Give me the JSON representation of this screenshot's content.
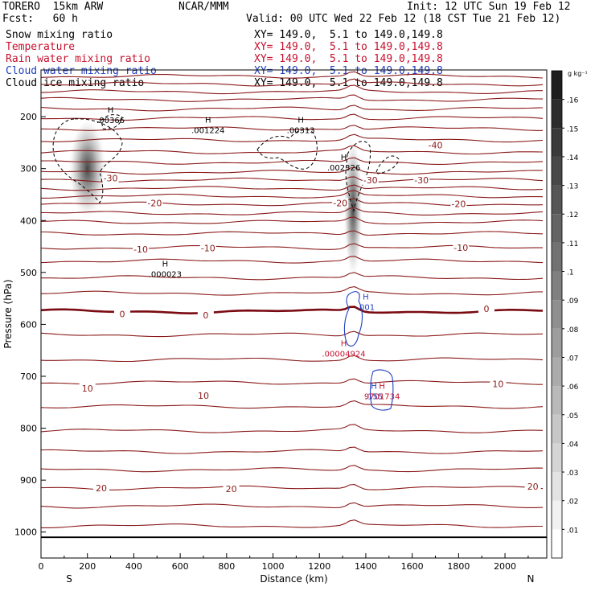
{
  "header": {
    "model": "TORERO  15km ARW",
    "org": "NCAR/MMM",
    "init": "Init: 12 UTC Sun 19 Feb 12",
    "fcst": "Fcst:   60 h",
    "valid": "Valid: 00 UTC Wed 22 Feb 12 (18 CST Tue 21 Feb 12)",
    "fields": [
      {
        "label": "Snow mixing ratio",
        "xy": "XY= 149.0,  5.1 to 149.0,149.8",
        "color": "#000000"
      },
      {
        "label": "Temperature",
        "xy": "XY= 149.0,  5.1 to 149.0,149.8",
        "color": "#c8102e"
      },
      {
        "label": "Rain water mixing ratio",
        "xy": "XY= 149.0,  5.1 to 149.0,149.8",
        "color": "#c8102e"
      },
      {
        "label": "Cloud water mixing ratio",
        "xy": "XY= 149.0,  5.1 to 149.0,149.8",
        "color": "#1f3fbf"
      },
      {
        "label": "Cloud ice mixing ratio",
        "xy": "XY= 149.0,  5.1 to 149.0,149.8",
        "color": "#000000"
      }
    ]
  },
  "chart_data": {
    "type": "cross-section",
    "xlabel": "Distance (km)",
    "ylabel": "Pressure (hPa)",
    "xlim": [
      0,
      2180
    ],
    "ylim": [
      1050,
      110
    ],
    "x_ticks": [
      0,
      200,
      400,
      600,
      800,
      1000,
      1200,
      1400,
      1600,
      1800,
      2000
    ],
    "y_ticks": [
      200,
      300,
      400,
      500,
      600,
      700,
      800,
      900,
      1000
    ],
    "endpoints": {
      "left": "S",
      "right": "N"
    },
    "surface_pressure": 1010,
    "isotherm_pressures": [
      122,
      137,
      152,
      167,
      185,
      203,
      223,
      245,
      268,
      288,
      307,
      322,
      338,
      353,
      368,
      386,
      403,
      425,
      452,
      478,
      510,
      540,
      575,
      620,
      668,
      712,
      758,
      805,
      845,
      880,
      915,
      950,
      988
    ],
    "temperature_labels": [
      {
        "text": "-40",
        "x": 1700,
        "p": 255
      },
      {
        "text": "-30",
        "x": 300,
        "p": 318
      },
      {
        "text": "-30",
        "x": 1420,
        "p": 322
      },
      {
        "text": "-30",
        "x": 1640,
        "p": 322
      },
      {
        "text": "-20",
        "x": 490,
        "p": 366
      },
      {
        "text": "-20",
        "x": 1290,
        "p": 366
      },
      {
        "text": "-20",
        "x": 1800,
        "p": 368
      },
      {
        "text": "-10",
        "x": 430,
        "p": 455
      },
      {
        "text": "-10",
        "x": 720,
        "p": 453
      },
      {
        "text": "-10",
        "x": 1810,
        "p": 452
      },
      {
        "text": "0",
        "x": 350,
        "p": 580
      },
      {
        "text": "0",
        "x": 710,
        "p": 582
      },
      {
        "text": "0",
        "x": 1920,
        "p": 570
      },
      {
        "text": "10",
        "x": 200,
        "p": 723
      },
      {
        "text": "10",
        "x": 700,
        "p": 737
      },
      {
        "text": "10",
        "x": 1970,
        "p": 715
      },
      {
        "text": "20",
        "x": 260,
        "p": 915
      },
      {
        "text": "20",
        "x": 820,
        "p": 917
      },
      {
        "text": "20",
        "x": 2120,
        "p": 912
      }
    ],
    "snow_shading": [
      {
        "x": 200,
        "p_top": 210,
        "p_bottom": 410,
        "peak": 0.13
      },
      {
        "x": 1345,
        "p_top": 250,
        "p_bottom": 530,
        "peak": 0.11
      }
    ],
    "colorbar": {
      "unit": "g kg⁻¹",
      "ticks": [
        ".01",
        ".02",
        ".03",
        ".04",
        ".05",
        ".06",
        ".07",
        ".08",
        ".09",
        ".1",
        ".11",
        ".12",
        ".13",
        ".14",
        ".15",
        ".16"
      ]
    },
    "extrema_labels": [
      {
        "mark": "H",
        "value": ".00366",
        "x": 300,
        "p": 198,
        "color": "#000000"
      },
      {
        "mark": "H",
        "value": ".001224",
        "x": 720,
        "p": 218,
        "color": "#000000"
      },
      {
        "mark": "H",
        "value": ".00313",
        "x": 1120,
        "p": 218,
        "color": "#000000"
      },
      {
        "mark": "H",
        "value": ".002326",
        "x": 1305,
        "p": 290,
        "color": "#000000"
      },
      {
        "mark": "H",
        "value": ".000023",
        "x": 535,
        "p": 495,
        "color": "#000000"
      },
      {
        "mark": "H",
        "value": ".001",
        "x": 1400,
        "p": 558,
        "color": "#1f3fbf"
      },
      {
        "mark": "H",
        "value": ".00004924",
        "x": 1305,
        "p": 648,
        "color": "#c8102e"
      },
      {
        "mark": "H",
        "value": ".155",
        "x": 1435,
        "p": 730,
        "color": "#1f3fbf"
      },
      {
        "mark": "H",
        "value": "9701734",
        "x": 1470,
        "p": 730,
        "color": "#c8102e"
      }
    ]
  }
}
